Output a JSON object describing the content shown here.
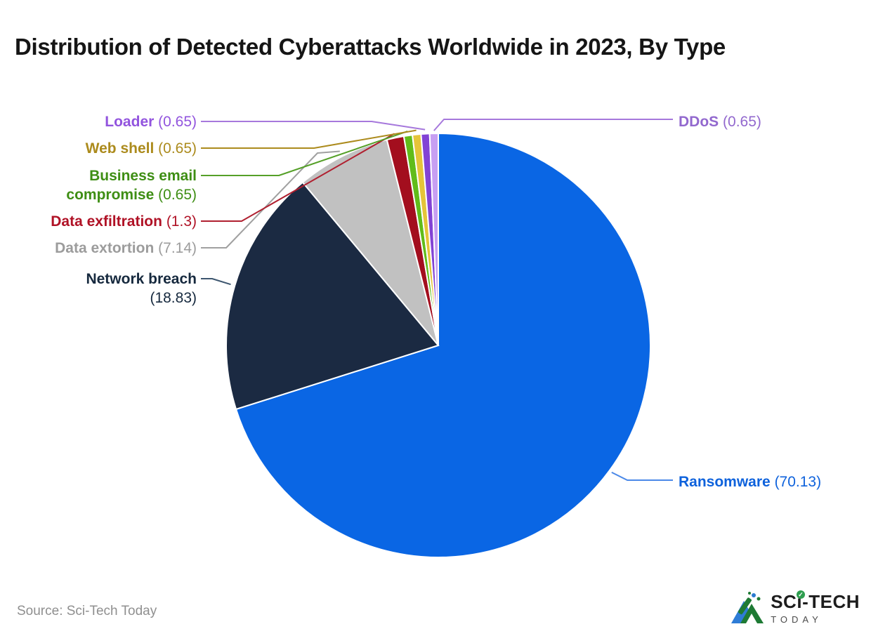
{
  "title": "Distribution of Detected Cyberattacks Worldwide in 2023, By Type",
  "source_note": "Source: Sci-Tech Today",
  "logo": {
    "sc": "SC",
    "i": "i",
    "tech": "-TECH",
    "today": "TODAY",
    "check": "✓"
  },
  "chart_data": {
    "type": "pie",
    "title": "Distribution of Detected Cyberattacks Worldwide in 2023, By Type",
    "values_are": "percent share of detected cyberattacks",
    "total": 100,
    "start_angle_deg": 0,
    "direction": "clockwise",
    "legend_position": "callout-labels",
    "series": [
      {
        "name": "Ransomware",
        "value": 70.13,
        "display": "(70.13)",
        "color": "#0A66E4",
        "label_color": "#0E62DC",
        "line_color": "#4A88E8"
      },
      {
        "name": "Network breach",
        "value": 18.83,
        "display": "(18.83)",
        "color": "#1B2A42",
        "label_color": "#16293E",
        "line_color": "#3D566F"
      },
      {
        "name": "Data extortion",
        "value": 7.14,
        "display": "(7.14)",
        "color": "#C1C1C1",
        "label_color": "#9C9C9C",
        "line_color": "#A0A0A0"
      },
      {
        "name": "Data exfiltration",
        "value": 1.3,
        "display": "(1.3)",
        "color": "#A30E1E",
        "label_color": "#B01226",
        "line_color": "#B02030"
      },
      {
        "name": "Business email compromise",
        "value": 0.65,
        "display": "(0.65)",
        "color": "#61BC1A",
        "label_color": "#3E8E14",
        "line_color": "#55A028"
      },
      {
        "name": "Web shell",
        "value": 0.65,
        "display": "(0.65)",
        "color": "#E5C439",
        "label_color": "#AC8B1D",
        "line_color": "#AC8B1D"
      },
      {
        "name": "Loader",
        "value": 0.65,
        "display": "(0.65)",
        "color": "#8243D5",
        "label_color": "#9254DE",
        "line_color": "#A678DC"
      },
      {
        "name": "DDoS",
        "value": 0.65,
        "display": "(0.65)",
        "color": "#C79FF2",
        "label_color": "#9268CE",
        "line_color": "#A678DC"
      }
    ]
  }
}
